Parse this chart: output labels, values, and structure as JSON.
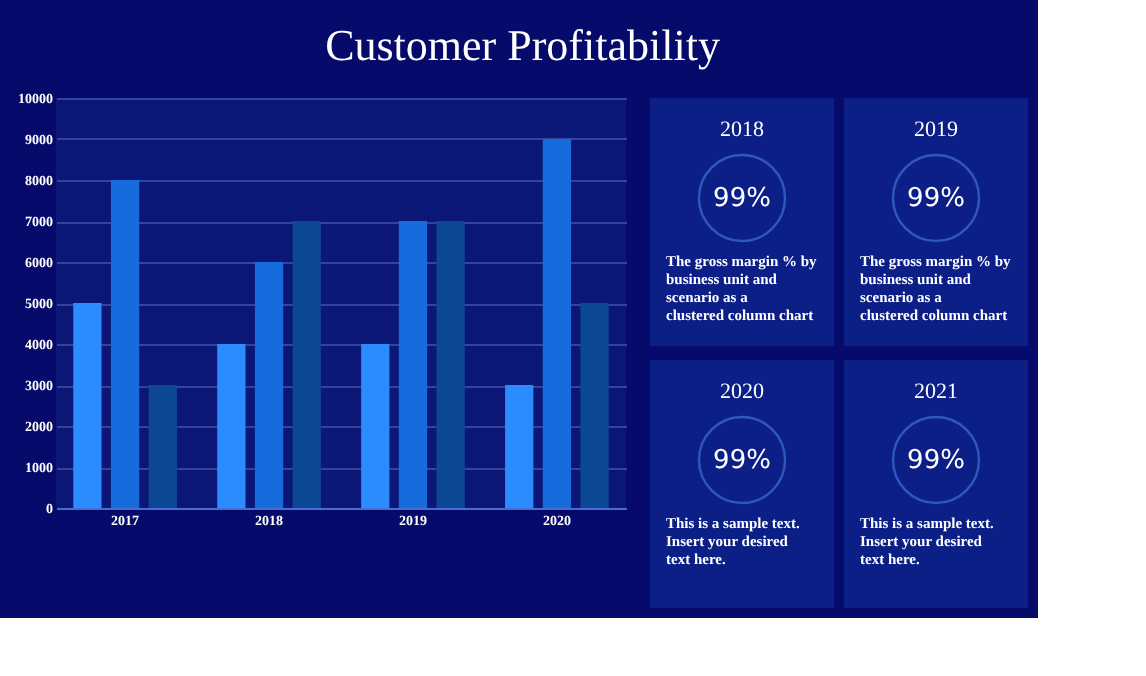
{
  "chart_data": [
    {
      "type": "bar",
      "title": "Customer Profitability",
      "categories": [
        "2017",
        "2018",
        "2019",
        "2020"
      ],
      "series": [
        {
          "color": "#2a8cff",
          "values": [
            5000,
            4000,
            4000,
            3000
          ]
        },
        {
          "color": "#166cdc",
          "values": [
            8000,
            6000,
            7000,
            9000
          ]
        },
        {
          "color": "#0d4894",
          "values": [
            3000,
            7000,
            7000,
            5000
          ]
        }
      ],
      "ylim": [
        0,
        10000
      ],
      "yticks": [
        0,
        1000,
        2000,
        3000,
        4000,
        5000,
        6000,
        7000,
        8000,
        9000,
        10000
      ],
      "grid": "y",
      "legend": false
    },
    {
      "type": "other",
      "title": "2018",
      "annotations": [
        "99%",
        "The gross margin % by business unit and scenario as a clustered column chart"
      ]
    },
    {
      "type": "other",
      "title": "2019",
      "annotations": [
        "99%",
        "The gross margin % by business unit and scenario as a clustered column chart"
      ]
    },
    {
      "type": "other",
      "title": "2020",
      "annotations": [
        "99%",
        "This is a sample text. Insert your desired text here."
      ]
    },
    {
      "type": "other",
      "title": "2021",
      "annotations": [
        "99%",
        "This is a sample text. Insert your desired text here."
      ]
    }
  ]
}
